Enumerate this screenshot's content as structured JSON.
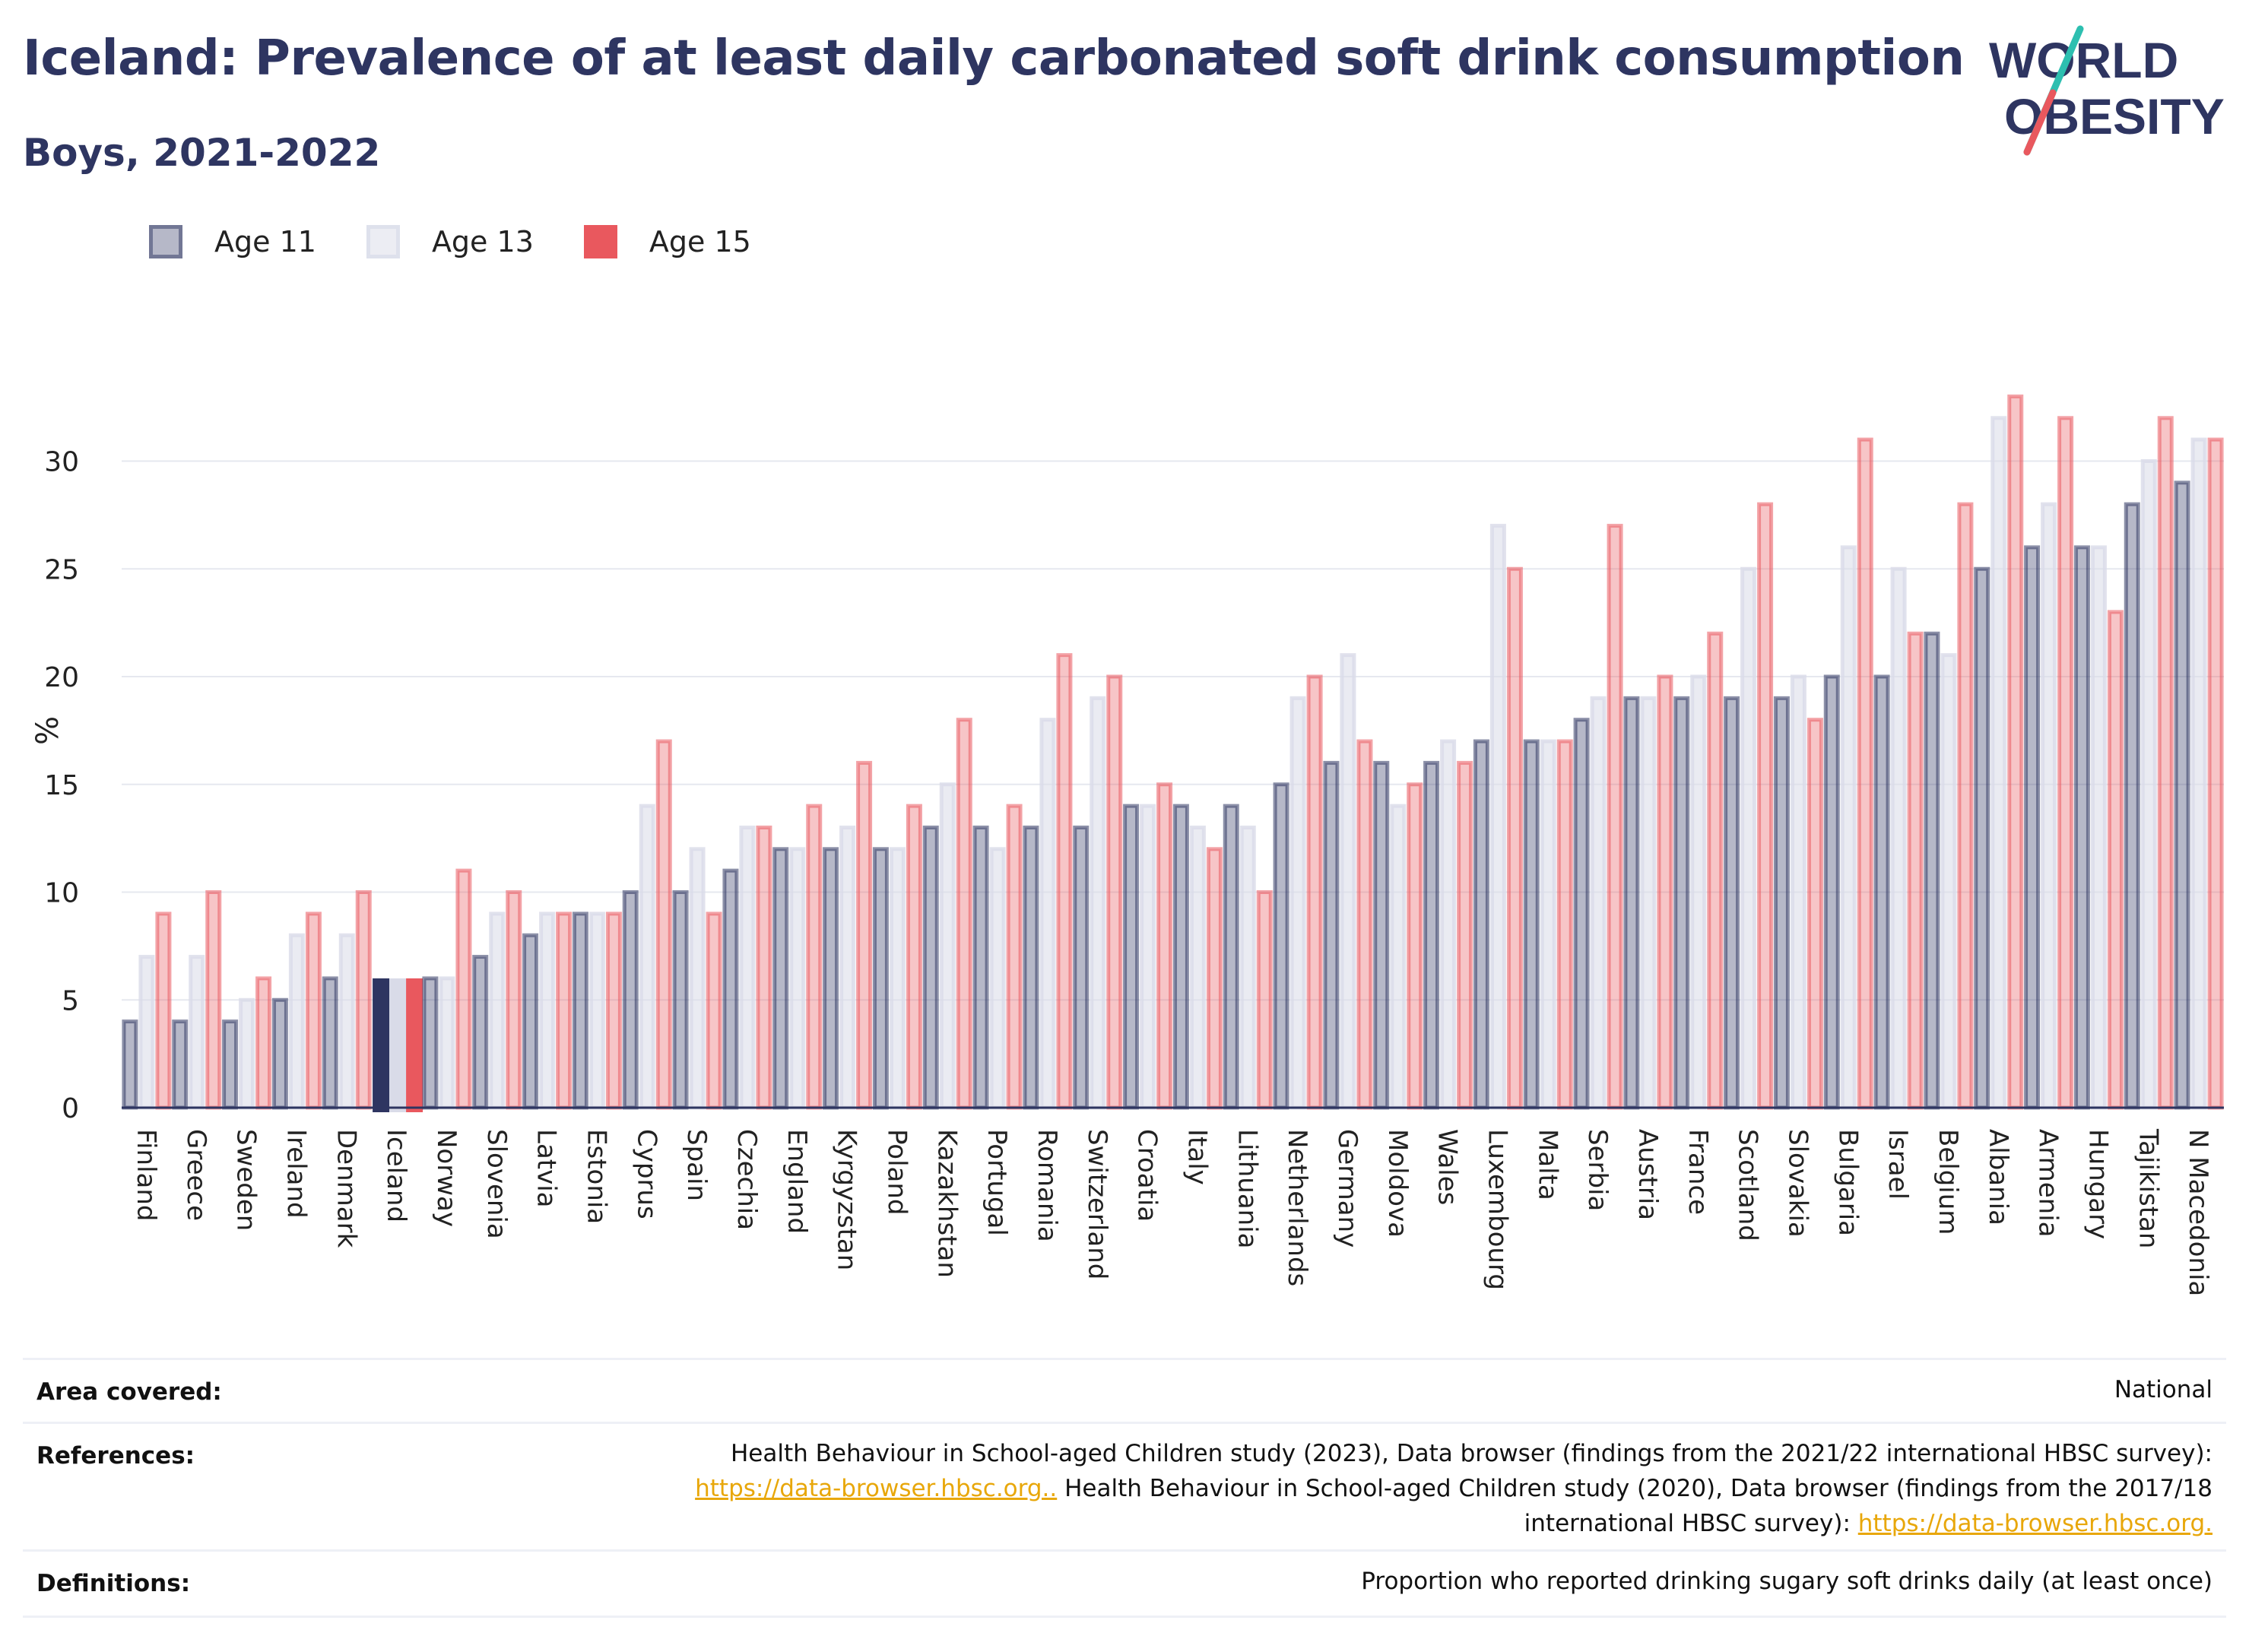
{
  "title": "Iceland: Prevalence of at least daily carbonated soft drink consumption",
  "subtitle": "Boys, 2021-2022",
  "logo": {
    "line1": "WORLD",
    "line2": "OBESITY"
  },
  "colors": {
    "age11": "#2e3561",
    "age13": "#d9dbe8",
    "age15": "#e9585e",
    "title": "#2e3561",
    "link": "#e8a70a"
  },
  "chart_data": {
    "type": "bar",
    "ylabel": "%",
    "ylim": [
      0,
      35
    ],
    "yticks": [
      0,
      5,
      10,
      15,
      20,
      25,
      30
    ],
    "highlight": "Iceland",
    "legend_position": "top-left",
    "categories": [
      "Finland",
      "Greece",
      "Sweden",
      "Ireland",
      "Denmark",
      "Iceland",
      "Norway",
      "Slovenia",
      "Latvia",
      "Estonia",
      "Cyprus",
      "Spain",
      "Czechia",
      "England",
      "Kyrgyzstan",
      "Poland",
      "Kazakhstan",
      "Portugal",
      "Romania",
      "Switzerland",
      "Croatia",
      "Italy",
      "Lithuania",
      "Netherlands",
      "Germany",
      "Moldova",
      "Wales",
      "Luxembourg",
      "Malta",
      "Serbia",
      "Austria",
      "France",
      "Scotland",
      "Slovakia",
      "Bulgaria",
      "Israel",
      "Belgium",
      "Albania",
      "Armenia",
      "Hungary",
      "Tajikistan",
      "N Macedonia"
    ],
    "series": [
      {
        "name": "Age 11",
        "values": [
          4,
          4,
          4,
          5,
          6,
          6,
          6,
          7,
          8,
          9,
          10,
          10,
          11,
          12,
          12,
          12,
          13,
          13,
          13,
          13,
          14,
          14,
          14,
          15,
          16,
          16,
          16,
          17,
          17,
          18,
          19,
          19,
          19,
          19,
          20,
          20,
          22,
          25,
          26,
          26,
          28,
          29
        ]
      },
      {
        "name": "Age 13",
        "values": [
          7,
          7,
          5,
          8,
          8,
          6,
          6,
          9,
          9,
          9,
          14,
          12,
          13,
          12,
          13,
          12,
          15,
          12,
          18,
          19,
          14,
          13,
          13,
          19,
          21,
          14,
          17,
          27,
          17,
          19,
          19,
          20,
          25,
          20,
          26,
          25,
          21,
          32,
          28,
          26,
          30,
          31
        ]
      },
      {
        "name": "Age 15",
        "values": [
          9,
          10,
          6,
          9,
          10,
          6,
          11,
          10,
          9,
          9,
          17,
          9,
          13,
          14,
          16,
          14,
          18,
          14,
          21,
          20,
          15,
          12,
          10,
          20,
          17,
          15,
          16,
          25,
          17,
          27,
          20,
          22,
          28,
          18,
          31,
          22,
          28,
          33,
          32,
          23,
          32,
          31
        ]
      }
    ]
  },
  "info": {
    "area_label": "Area covered:",
    "area_value": "National",
    "references_label": "References:",
    "ref_line1": "Health Behaviour in School-aged Children study (2023), Data browser (findings from the 2021/22 international HBSC survey):",
    "ref_link1": "https://data-browser.hbsc.org..",
    "ref_line2": " Health Behaviour in School-aged Children study (2020), Data browser (findings from the 2017/18",
    "ref_line3": "international HBSC survey): ",
    "ref_link2": "https://data-browser.hbsc.org.",
    "definitions_label": "Definitions:",
    "definitions_value": "Proportion who reported drinking sugary soft drinks daily (at least once)"
  }
}
